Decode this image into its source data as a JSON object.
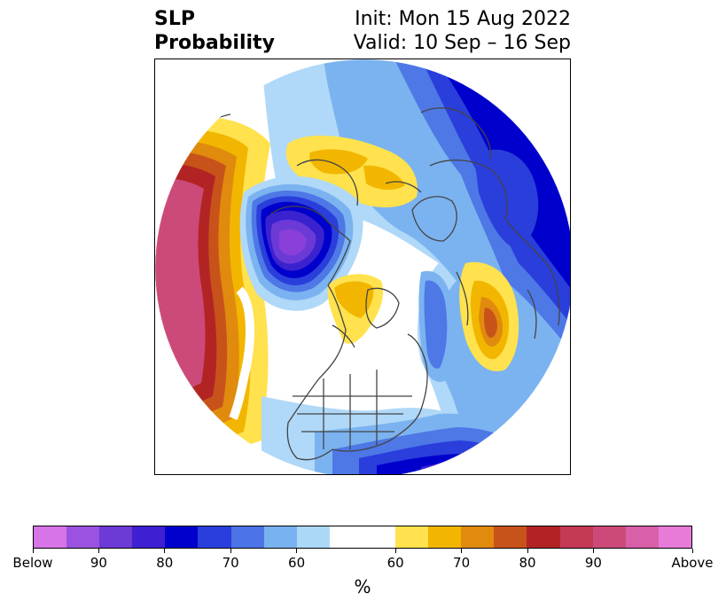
{
  "title": {
    "left_line1": "SLP",
    "left_line2": "Probability",
    "right_line1": "Init: Mon 15 Aug 2022",
    "right_line2": "Valid: 10 Sep – 16 Sep"
  },
  "map": {
    "projection": "north-polar-stereographic",
    "colors": {
      "below_strong": "#8a3fd9",
      "below_90": "#6b3ad6",
      "below_80": "#3a22cf",
      "below_75": "#0000cc",
      "below_70": "#2a3edb",
      "below_65": "#4d78e6",
      "below_60": "#7bb3f0",
      "below_55": "#b0d8f8",
      "neutral": "#ffffff",
      "above_55": "#ffe24d",
      "above_60": "#f2b600",
      "above_65": "#e08a0e",
      "above_70": "#c8531a",
      "above_75": "#b22424",
      "above_80": "#c43c55",
      "above_85": "#cc4a7a",
      "coast": "#444444"
    }
  },
  "colorbar": {
    "colors": [
      "#d774e8",
      "#9b52e0",
      "#6d3ad6",
      "#3e1fd2",
      "#0000cc",
      "#2a3edb",
      "#4c74e6",
      "#78b2f0",
      "#acd8f8",
      "#ffffff",
      "#ffe24d",
      "#f2b600",
      "#e08a0e",
      "#c8531a",
      "#b22424",
      "#c43a55",
      "#cc4a7a",
      "#d95fa8",
      "#e87ad8"
    ],
    "tick_labels": [
      "Below",
      "90",
      "80",
      "70",
      "60",
      "60",
      "70",
      "80",
      "90",
      "Above"
    ],
    "unit": "%"
  }
}
